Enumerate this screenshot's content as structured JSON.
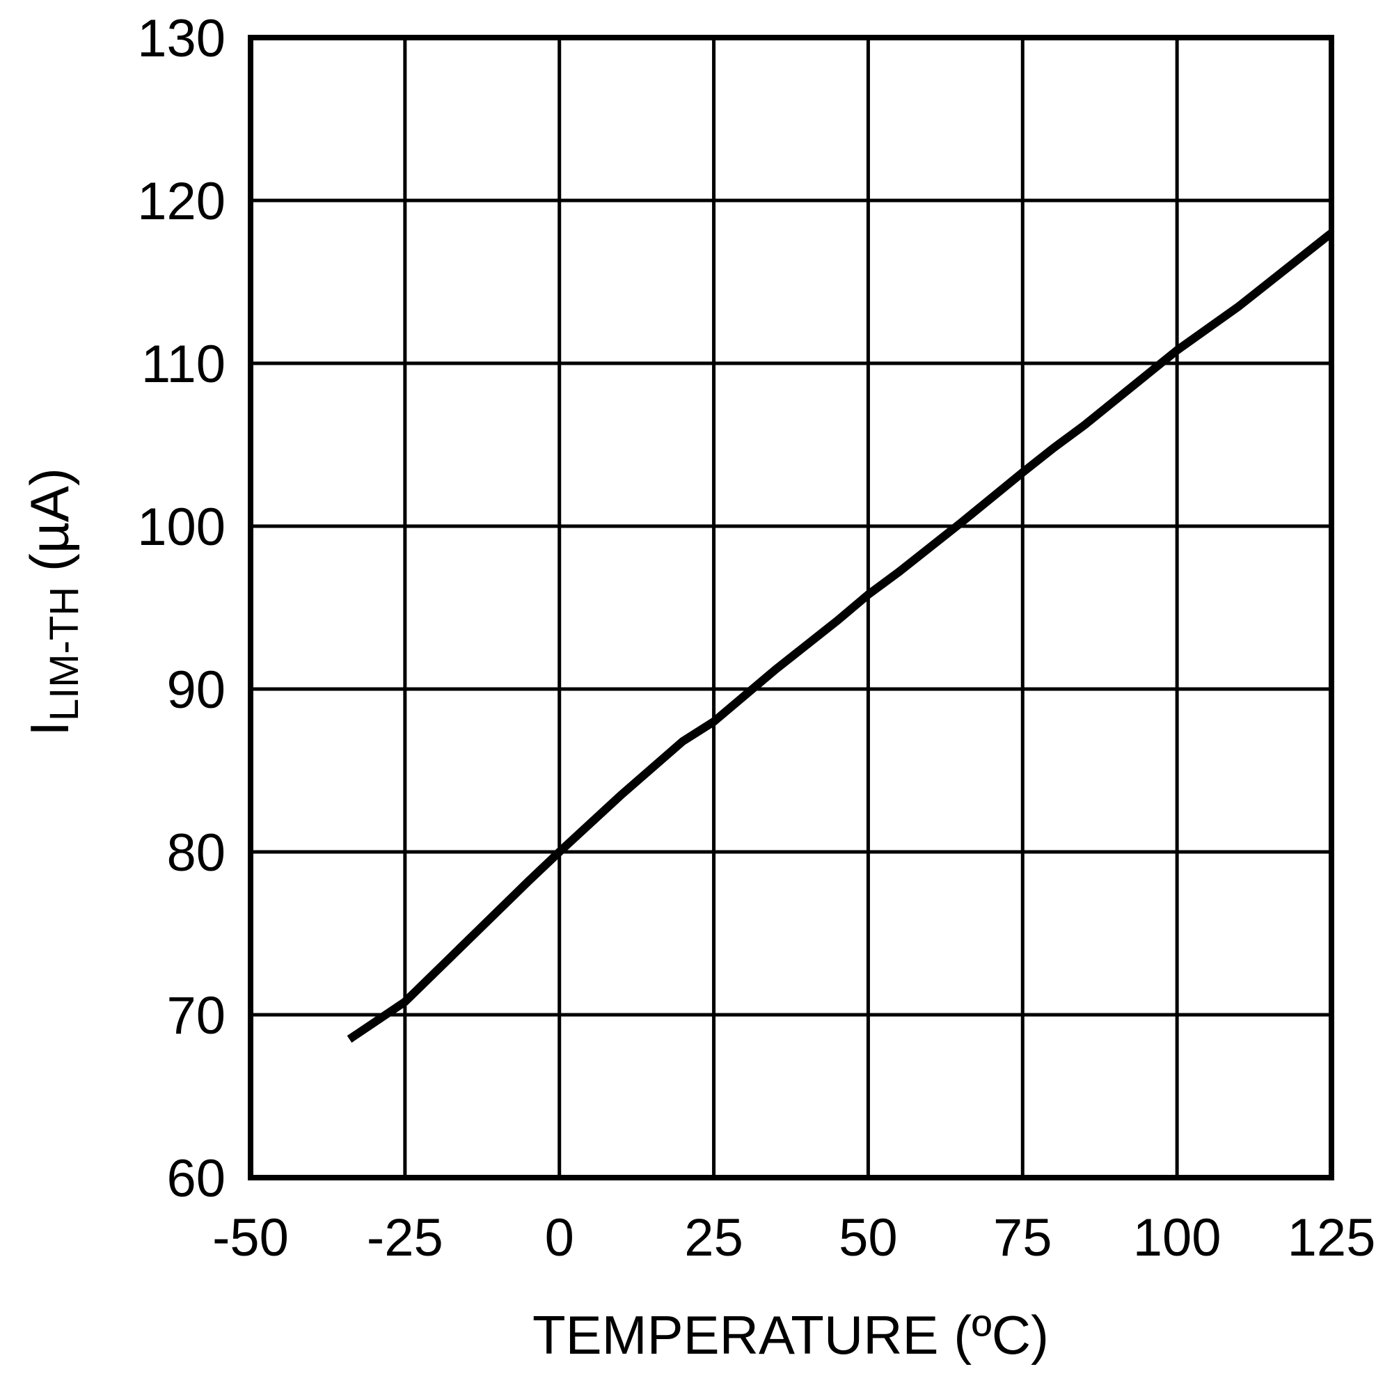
{
  "chart_data": {
    "type": "line",
    "title": "",
    "xlabel": "TEMPERATURE (ºC)",
    "ylabel": "I_LIM-TH (µA)",
    "ylabel_main": "I",
    "ylabel_sub": "LIM-TH",
    "ylabel_unit": " (µA)",
    "xlim": [
      -50,
      125
    ],
    "ylim": [
      60,
      130
    ],
    "x_ticks": [
      "-50",
      "-25",
      "0",
      "25",
      "50",
      "75",
      "100",
      "125"
    ],
    "y_ticks": [
      "60",
      "70",
      "80",
      "90",
      "100",
      "110",
      "120",
      "130"
    ],
    "grid": true,
    "legend": null,
    "series": [
      {
        "name": "I_LIM-TH",
        "color": "#000000",
        "x": [
          -34,
          -25,
          -15,
          -5,
          0,
          10,
          20,
          25,
          35,
          45,
          50,
          55,
          65,
          75,
          80,
          85,
          100,
          110,
          125
        ],
        "y": [
          68.5,
          70.8,
          74.5,
          78.2,
          80.0,
          83.5,
          86.8,
          88.0,
          91.2,
          94.2,
          95.8,
          97.2,
          100.2,
          103.3,
          104.8,
          106.2,
          110.8,
          113.5,
          118.0
        ]
      }
    ]
  }
}
